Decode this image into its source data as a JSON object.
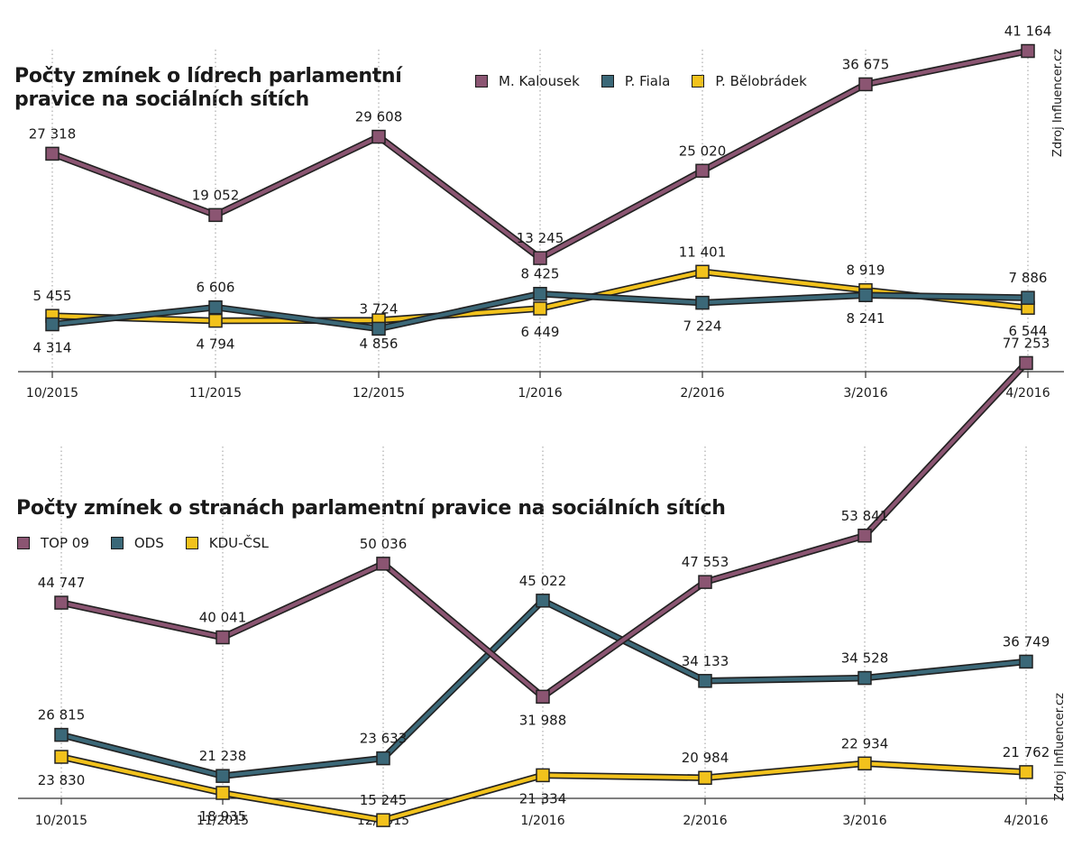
{
  "colors": {
    "purple": "#8B5572",
    "teal": "#3B6878",
    "yellow": "#F2C21C",
    "outline": "#222222"
  },
  "chart_data": [
    {
      "type": "line",
      "title": "Počty zmínek o lídrech parlamentní pravice na sociálních sítích",
      "source": "Zdroj Influencer.cz",
      "categories": [
        "10/2015",
        "11/2015",
        "12/2015",
        "1/2016",
        "2/2016",
        "3/2016",
        "4/2016"
      ],
      "ylim": [
        0,
        45000
      ],
      "legend_position": "top",
      "grid": "vertical dotted",
      "series": [
        {
          "name": "M. Kalousek",
          "color": "#8B5572",
          "values": [
            27318,
            19052,
            29608,
            13245,
            25020,
            36675,
            41164
          ],
          "labels": [
            "27 318",
            "19 052",
            "29 608",
            "13 245",
            "25 020",
            "36 675",
            "41 164"
          ],
          "label_side": [
            "above",
            "above",
            "above",
            "above",
            "above",
            "above",
            "above"
          ]
        },
        {
          "name": "P. Fiala",
          "color": "#3B6878",
          "values": [
            4314,
            6606,
            3724,
            8425,
            7224,
            8241,
            7886
          ],
          "labels": [
            "4 314",
            "6 606",
            "3 724",
            "8 425",
            "7 224",
            "8 241",
            "7 886"
          ],
          "label_side": [
            "below",
            "above",
            "above",
            "above",
            "below",
            "below",
            "above"
          ]
        },
        {
          "name": "P. Bělobrádek",
          "color": "#F2C21C",
          "values": [
            5455,
            4794,
            4856,
            6449,
            11401,
            8919,
            6544
          ],
          "labels": [
            "5 455",
            "4 794",
            "4 856",
            "6 449",
            "11 401",
            "8 919",
            "6 544"
          ],
          "label_side": [
            "above",
            "below",
            "below",
            "below",
            "above",
            "above",
            "below"
          ]
        }
      ]
    },
    {
      "type": "line",
      "title": "Počty zmínek o stranách parlamentní pravice na sociálních sítích",
      "source": "Zdroj Influencer.cz",
      "categories": [
        "10/2015",
        "11/2015",
        "12/2015",
        "1/2016",
        "2/2016",
        "3/2016",
        "4/2016"
      ],
      "ylim": [
        10000,
        80000
      ],
      "legend_position": "top-left",
      "grid": "vertical dotted",
      "series": [
        {
          "name": "TOP 09",
          "color": "#8B5572",
          "values": [
            44747,
            40041,
            50036,
            31988,
            47553,
            53841,
            77253
          ],
          "labels": [
            "44 747",
            "40 041",
            "50 036",
            "31 988",
            "47 553",
            "53 841",
            "77 253"
          ],
          "label_side": [
            "above",
            "above",
            "above",
            "below",
            "above",
            "above",
            "above"
          ]
        },
        {
          "name": "ODS",
          "color": "#3B6878",
          "values": [
            26815,
            21238,
            23633,
            45022,
            34133,
            34528,
            36749
          ],
          "labels": [
            "26 815",
            "21 238",
            "23 633",
            "45 022",
            "34 133",
            "34 528",
            "36 749"
          ],
          "label_side": [
            "above",
            "above",
            "above",
            "above",
            "above",
            "above",
            "above"
          ]
        },
        {
          "name": "KDU-ČSL",
          "color": "#F2C21C",
          "values": [
            23830,
            18935,
            15245,
            21334,
            20984,
            22934,
            21762
          ],
          "labels": [
            "23 830",
            "18 935",
            "15 245",
            "21 334",
            "20 984",
            "22 934",
            "21 762"
          ],
          "label_side": [
            "below",
            "below",
            "above",
            "below",
            "above",
            "above",
            "above"
          ]
        }
      ]
    }
  ]
}
